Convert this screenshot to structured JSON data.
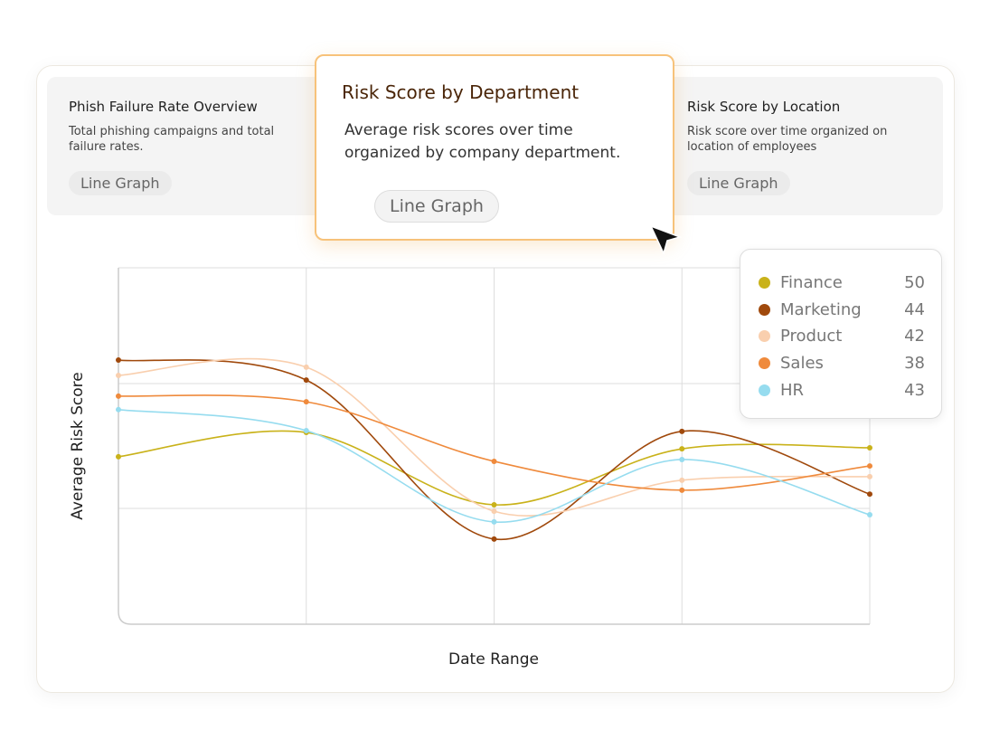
{
  "cards": [
    {
      "title": "Phish Failure Rate Overview",
      "description": "Total phishing campaigns and total failure rates.",
      "button": "Line Graph"
    },
    {
      "title": "Risk Score by Department",
      "description": "Average risk scores over time organized by company department.",
      "button": "Line Graph"
    },
    {
      "title": "Risk Score by Location",
      "description": "Risk score over time organized on location of employees",
      "button": "Line Graph"
    }
  ],
  "chart_data": {
    "type": "line",
    "x_label": "Date Range",
    "y_label": "Average Risk Score",
    "categories": [
      null,
      null,
      null,
      null,
      null
    ],
    "ylim": [
      0,
      100
    ],
    "yticks": [
      32.5,
      67.5
    ],
    "grid": true,
    "series": [
      {
        "name": "Finance",
        "color": "#c9b21a",
        "legend_value": 50,
        "values": [
          47.0,
          53.8,
          33.5,
          49.2,
          49.5
        ]
      },
      {
        "name": "Marketing",
        "color": "#a0490c",
        "legend_value": 44,
        "values": [
          74.1,
          68.5,
          23.9,
          54.1,
          36.5
        ]
      },
      {
        "name": "Product",
        "color": "#f9cfae",
        "legend_value": 42,
        "values": [
          69.8,
          72.1,
          31.7,
          40.4,
          41.4
        ]
      },
      {
        "name": "Sales",
        "color": "#ef8a3c",
        "legend_value": 38,
        "values": [
          64.0,
          62.4,
          45.7,
          37.6,
          44.4
        ]
      },
      {
        "name": "HR",
        "color": "#96dcef",
        "legend_value": 43,
        "values": [
          60.2,
          54.3,
          28.7,
          46.2,
          30.7
        ]
      }
    ]
  }
}
